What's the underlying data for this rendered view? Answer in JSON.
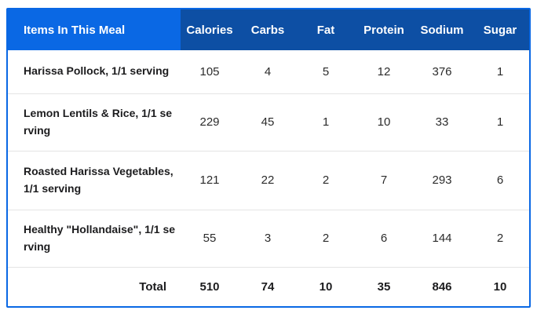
{
  "colors": {
    "header_item_bg": "#0a68e4",
    "header_numeric_bg": "#0d4fa4",
    "outer_border": "#0a68e4",
    "row_separator": "#e4e4e4",
    "header_text": "#ffffff",
    "body_text": "#1c1c1e"
  },
  "table": {
    "header": {
      "item_label": "Items In This Meal",
      "columns": [
        "Calories",
        "Carbs",
        "Fat",
        "Protein",
        "Sodium",
        "Sugar"
      ]
    },
    "rows": [
      {
        "item": "Harissa Pollock, 1/1 serving",
        "values": [
          105,
          4,
          5,
          12,
          376,
          1
        ]
      },
      {
        "item": "Lemon Lentils & Rice, 1/1 serving",
        "values": [
          229,
          45,
          1,
          10,
          33,
          1
        ]
      },
      {
        "item": "Roasted Harissa Vegetables, 1/1 serving",
        "values": [
          121,
          22,
          2,
          7,
          293,
          6
        ]
      },
      {
        "item": "Healthy \"Hollandaise\", 1/1 serving",
        "values": [
          55,
          3,
          2,
          6,
          144,
          2
        ]
      }
    ],
    "total": {
      "label": "Total",
      "values": [
        510,
        74,
        10,
        35,
        846,
        10
      ]
    }
  },
  "chart_data": {
    "type": "table",
    "title": "Items In This Meal",
    "columns": [
      "Items In This Meal",
      "Calories",
      "Carbs",
      "Fat",
      "Protein",
      "Sodium",
      "Sugar"
    ],
    "rows": [
      [
        "Harissa Pollock, 1/1 serving",
        105,
        4,
        5,
        12,
        376,
        1
      ],
      [
        "Lemon Lentils & Rice, 1/1 serving",
        229,
        45,
        1,
        10,
        33,
        1
      ],
      [
        "Roasted Harissa Vegetables, 1/1 serving",
        121,
        22,
        2,
        7,
        293,
        6
      ],
      [
        "Healthy \"Hollandaise\", 1/1 serving",
        55,
        3,
        2,
        6,
        144,
        2
      ],
      [
        "Total",
        510,
        74,
        10,
        35,
        846,
        10
      ]
    ]
  }
}
